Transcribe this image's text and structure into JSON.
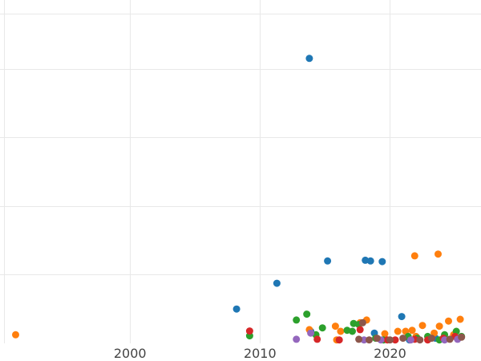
{
  "chart_data": {
    "type": "scatter",
    "title": "",
    "xlabel": "",
    "ylabel": "",
    "grid": true,
    "legend": "none",
    "xlim": [
      1990,
      2027
    ],
    "ylim": [
      0,
      100
    ],
    "x_ticks": [
      2000,
      2010,
      2020
    ],
    "x_tick_labels": [
      "2000",
      "2010",
      "2020"
    ],
    "y_ticks": [
      20,
      40,
      60,
      80
    ],
    "colors": {
      "blue": "#1f77b4",
      "orange": "#ff7f0e",
      "green": "#2ca02c",
      "red": "#d62728",
      "purple": "#9467bd",
      "brown": "#8c564b",
      "grid": "#e8e8e8",
      "tick_text": "#444444"
    },
    "series": [
      {
        "color": "#1f77b4",
        "points": [
          [
            2013.8,
            83.0
          ],
          [
            2008.2,
            10.0
          ],
          [
            2011.3,
            17.5
          ],
          [
            2015.2,
            24.0
          ],
          [
            2018.1,
            24.2
          ],
          [
            2018.5,
            24.0
          ],
          [
            2019.4,
            23.8
          ],
          [
            2020.9,
            7.8
          ],
          [
            2018.8,
            3.0
          ],
          [
            2013.9,
            3.5
          ],
          [
            2021.5,
            1.0
          ],
          [
            2023.5,
            1.5
          ]
        ]
      },
      {
        "color": "#ff7f0e",
        "points": [
          [
            1991.2,
            2.5
          ],
          [
            2021.9,
            25.5
          ],
          [
            2023.7,
            26.0
          ],
          [
            2025.4,
            7.0
          ],
          [
            2024.5,
            6.5
          ],
          [
            2023.8,
            5.0
          ],
          [
            2022.5,
            5.2
          ],
          [
            2021.7,
            3.8
          ],
          [
            2021.2,
            3.5
          ],
          [
            2020.6,
            3.5
          ],
          [
            2019.6,
            2.8
          ],
          [
            2018.2,
            6.8
          ],
          [
            2017.7,
            6.0
          ],
          [
            2016.2,
            3.5
          ],
          [
            2015.8,
            5.0
          ],
          [
            2023.4,
            3.0
          ],
          [
            2013.8,
            4.0
          ],
          [
            2015.9,
            1.0
          ],
          [
            2024.9,
            2.5
          ],
          [
            2022.0,
            2.0
          ]
        ]
      },
      {
        "color": "#2ca02c",
        "points": [
          [
            2009.2,
            2.2
          ],
          [
            2012.8,
            6.8
          ],
          [
            2013.6,
            8.5
          ],
          [
            2014.8,
            4.5
          ],
          [
            2014.3,
            2.5
          ],
          [
            2016.7,
            3.8
          ],
          [
            2017.1,
            3.5
          ],
          [
            2017.2,
            5.8
          ],
          [
            2017.6,
            5.5
          ],
          [
            2018.9,
            1.5
          ],
          [
            2019.5,
            1.0
          ],
          [
            2021.4,
            2.0
          ],
          [
            2022.1,
            1.5
          ],
          [
            2022.9,
            2.0
          ],
          [
            2024.2,
            2.5
          ],
          [
            2025.1,
            3.5
          ],
          [
            2025.5,
            2.0
          ],
          [
            2023.8,
            1.0
          ]
        ]
      },
      {
        "color": "#d62728",
        "points": [
          [
            2009.2,
            3.6
          ],
          [
            2014.4,
            1.2
          ],
          [
            2016.1,
            1.0
          ],
          [
            2017.7,
            4.0
          ],
          [
            2020.4,
            1.0
          ],
          [
            2022.9,
            1.0
          ],
          [
            2024.1,
            1.5
          ],
          [
            2025.0,
            2.0
          ],
          [
            2019.8,
            1.0
          ],
          [
            2021.9,
            1.2
          ]
        ]
      },
      {
        "color": "#9467bd",
        "points": [
          [
            2012.8,
            1.2
          ],
          [
            2013.9,
            3.0
          ],
          [
            2018.0,
            1.0
          ],
          [
            2021.6,
            1.0
          ],
          [
            2024.2,
            1.0
          ],
          [
            2025.2,
            1.2
          ],
          [
            2019.3,
            1.0
          ]
        ]
      },
      {
        "color": "#8c564b",
        "points": [
          [
            2017.6,
            1.2
          ],
          [
            2017.9,
            6.0
          ],
          [
            2019.0,
            1.5
          ],
          [
            2020.0,
            1.0
          ],
          [
            2022.3,
            1.0
          ],
          [
            2023.2,
            1.5
          ],
          [
            2024.6,
            1.2
          ],
          [
            2025.5,
            1.8
          ],
          [
            2018.4,
            1.0
          ],
          [
            2021.0,
            1.5
          ]
        ]
      }
    ]
  }
}
